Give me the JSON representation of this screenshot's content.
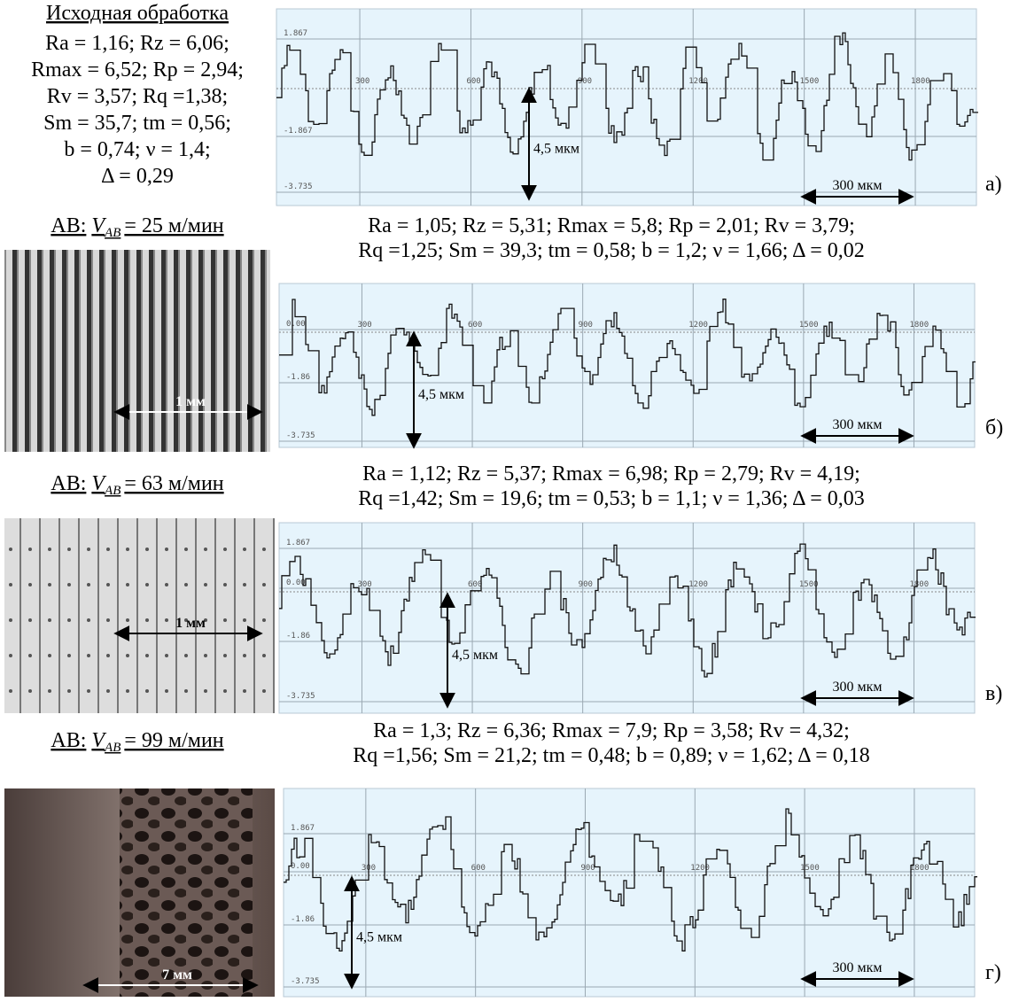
{
  "panels": [
    {
      "heading": "Исходная обработка",
      "params": [
        "Ra = 1,16; Rz = 6,06;",
        "Rmax = 6,52; Rp = 2,94;",
        "Rv = 3,57; Rq =1,38;",
        "Sm = 35,7; tm = 0,56;",
        "b = 0,74; ν = 1,4;",
        "Δ = 0,29"
      ],
      "y_labels": [
        "1.867",
        "-1.867",
        "-3.735"
      ],
      "x_labels": [
        "300",
        "600",
        "900",
        "1200",
        "1500",
        "1800"
      ],
      "depth": "4,5 мкм",
      "scale": "300 мкм",
      "letter": "а)"
    },
    {
      "heading": {
        "prefix": "АВ:",
        "var": "V",
        "sub": "AB",
        "rest": "= 25 м/мин"
      },
      "params": [
        "Ra = 1,05; Rz = 5,31; Rmax = 5,8; Rp = 2,01; Rv = 3,79;",
        "Rq =1,25; Sm = 39,3; tm = 0,58; b = 1,2; ν = 1,66; Δ = 0,02"
      ],
      "photo_label": "1 мм",
      "y_labels": [
        "0.00",
        "-1.86",
        "-3.735"
      ],
      "x_labels": [
        "300",
        "600",
        "900",
        "1200",
        "1500",
        "1800"
      ],
      "depth": "4,5 мкм",
      "scale": "300 мкм",
      "letter": "б)"
    },
    {
      "heading": {
        "prefix": "АВ:",
        "var": "V",
        "sub": "AB",
        "rest": "= 63 м/мин"
      },
      "params": [
        "Ra = 1,12; Rz = 5,37; Rmax = 6,98; Rp = 2,79; Rv = 4,19;",
        "Rq =1,42; Sm = 19,6; tm = 0,53; b = 1,1; ν = 1,36; Δ = 0,03"
      ],
      "photo_label": "1 мм",
      "y_labels": [
        "1.867",
        "0.00",
        "-1.86",
        "-3.735"
      ],
      "x_labels": [
        "300",
        "600",
        "900",
        "1200",
        "1500",
        "1800"
      ],
      "depth": "4,5 мкм",
      "scale": "300 мкм",
      "letter": "в)"
    },
    {
      "heading": {
        "prefix": "АВ:",
        "var": "V",
        "sub": "AB",
        "rest": "= 99 м/мин"
      },
      "params": [
        "Ra = 1,3; Rz = 6,36; Rmax = 7,9; Rp = 3,58; Rv = 4,32;",
        "Rq =1,56; Sm = 21,2; tm = 0,48; b = 0,89; ν = 1,62; Δ = 0,18"
      ],
      "photo_label": "7 мм",
      "y_labels": [
        "1.867",
        "0.00",
        "-1.86",
        "-3.735"
      ],
      "x_labels": [
        "300",
        "600",
        "900",
        "1200",
        "1500",
        "1800"
      ],
      "depth": "4,5 мкм",
      "scale": "300 мкм",
      "letter": "г)"
    }
  ]
}
